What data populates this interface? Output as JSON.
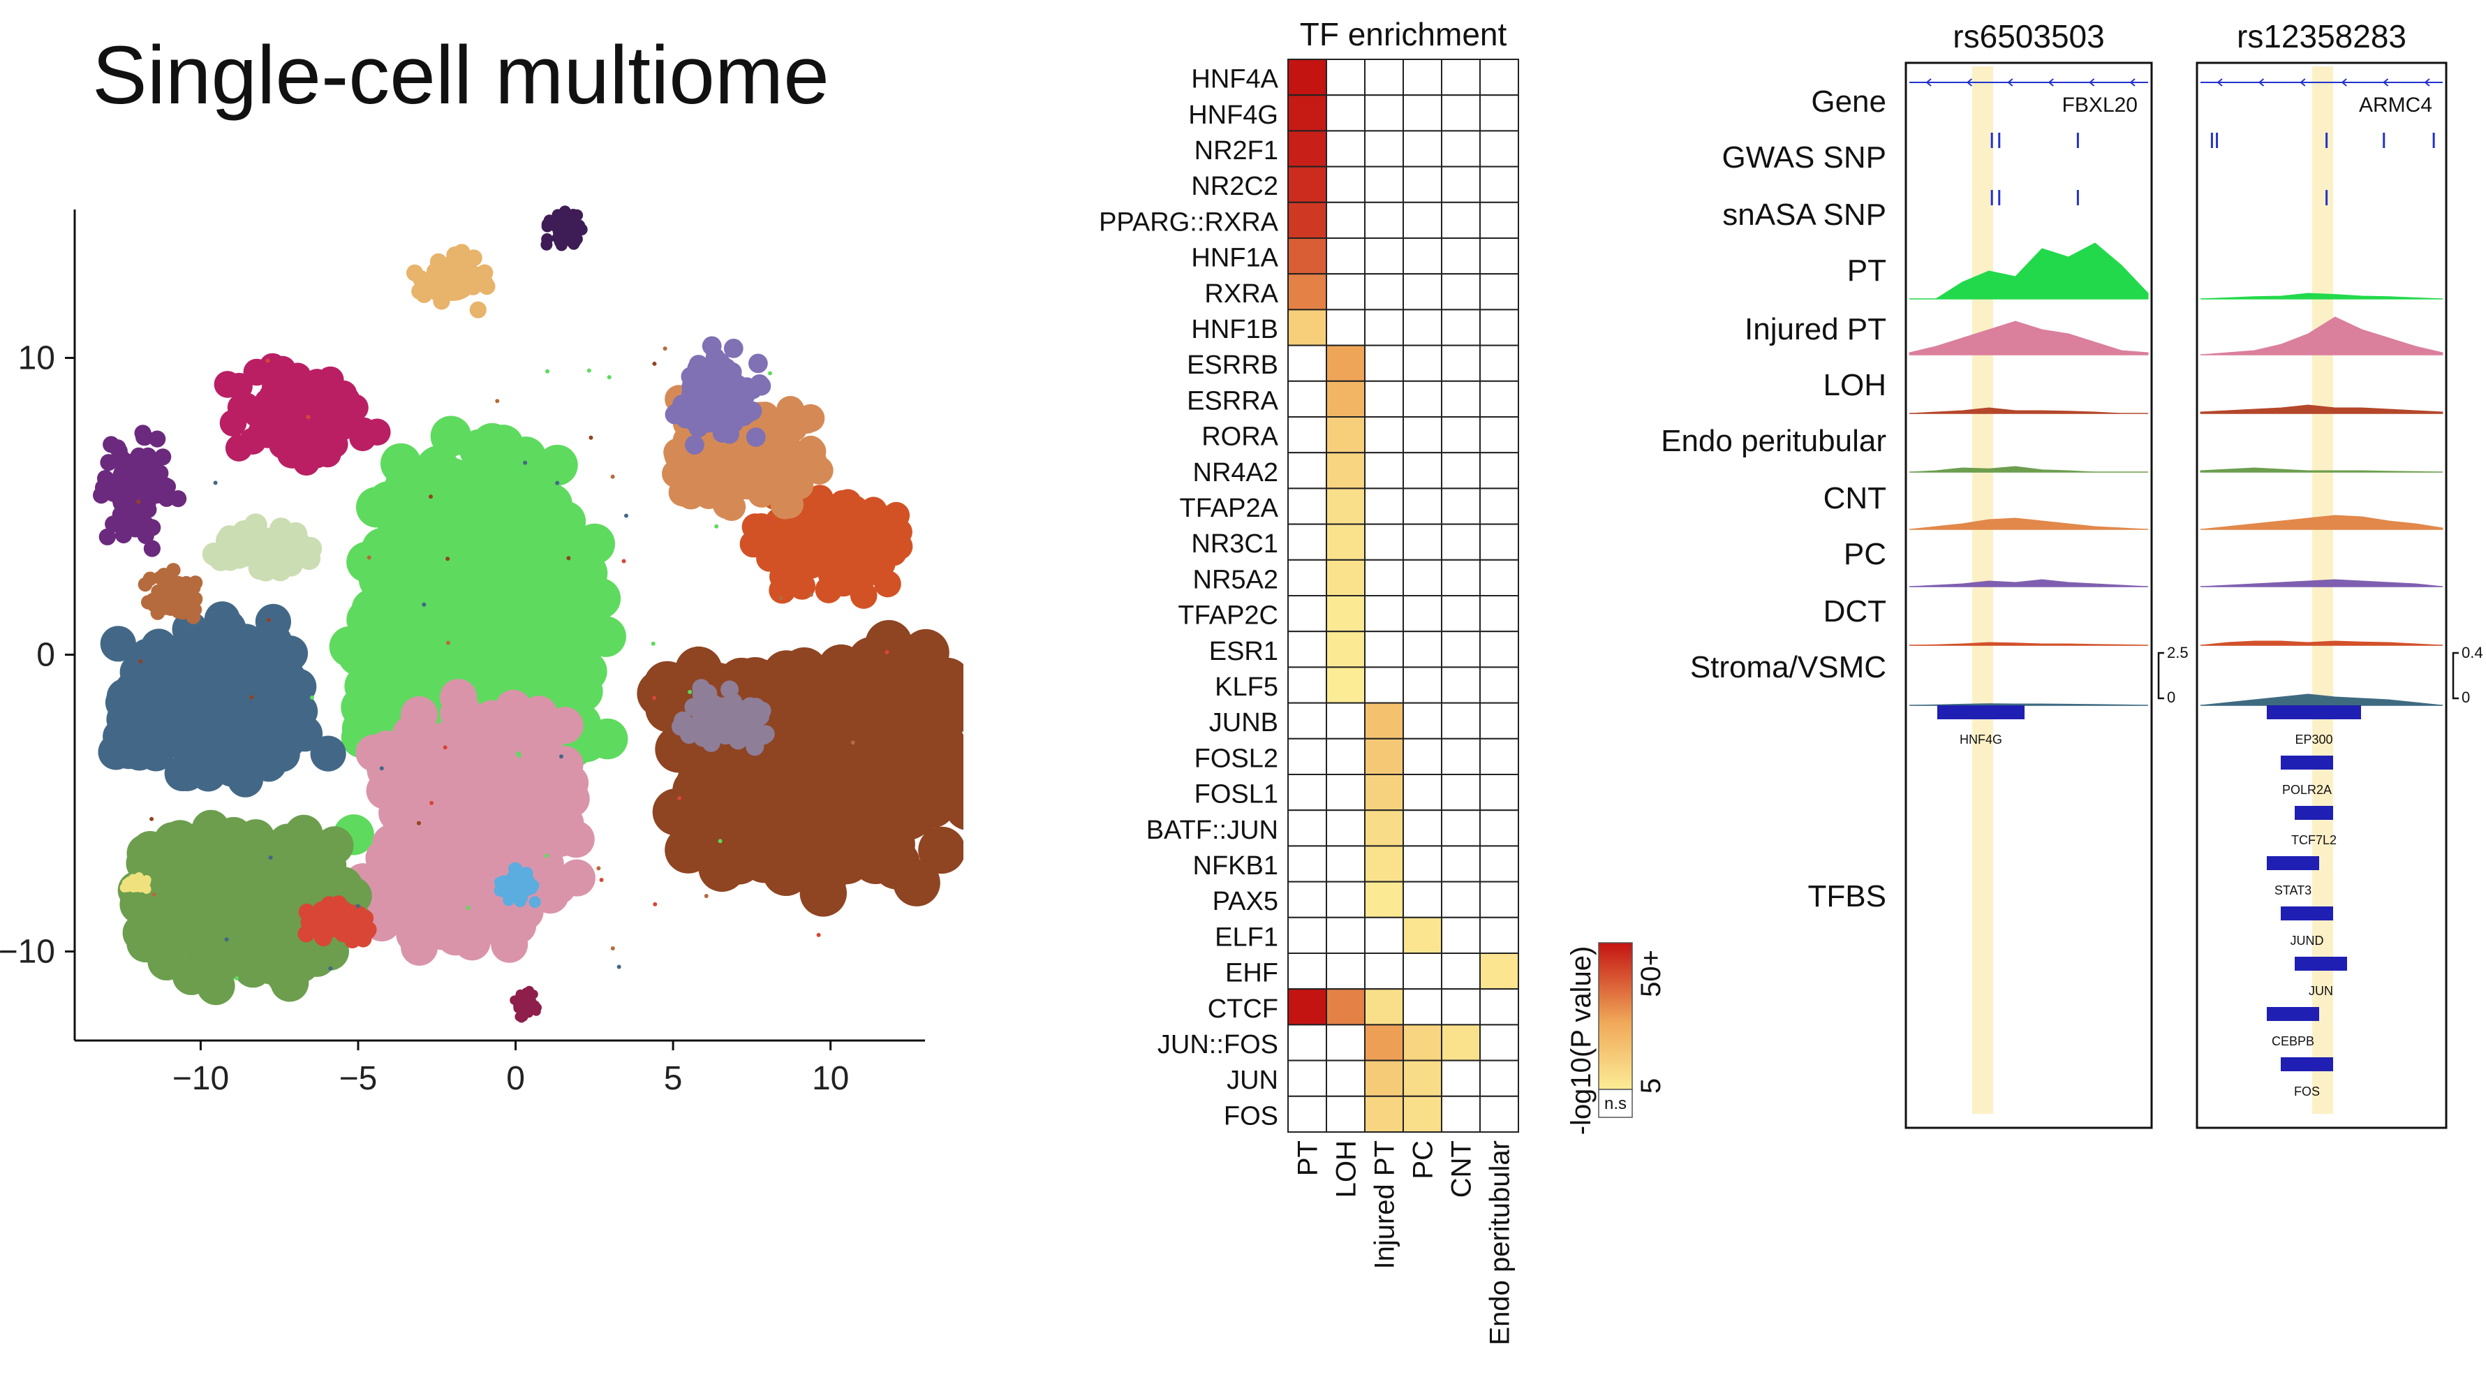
{
  "title": "Single-cell multiome",
  "umap": {
    "x_ticks": [
      "−10",
      "−5",
      "0",
      "5",
      "10"
    ],
    "y_ticks": [
      "10",
      "0",
      "−10"
    ],
    "xlim": [
      -14,
      13
    ],
    "ylim": [
      -13,
      15
    ]
  },
  "chart_data": [
    {
      "type": "scatter",
      "x_ticks": [
        -10,
        -5,
        0,
        5,
        10
      ],
      "y_ticks": [
        10,
        0,
        -10
      ],
      "xlim": [
        -14,
        13
      ],
      "ylim": [
        -13,
        15
      ],
      "clusters": [
        {
          "color": "#5EDA5E",
          "cx": -1.3,
          "cy": 0.5,
          "rx": 2.8,
          "ry": 4.6
        },
        {
          "color": "#DA94AA",
          "cx": -1.3,
          "cy": -5.7,
          "rx": 2.5,
          "ry": 3.0
        },
        {
          "color": "#5BADE0",
          "cx": 0.0,
          "cy": -7.8,
          "rx": 0.5,
          "ry": 0.5
        },
        {
          "color": "#8F4422",
          "cx": 9.6,
          "cy": -3.6,
          "rx": 3.3,
          "ry": 2.9
        },
        {
          "color": "#8E7E98",
          "cx": 6.6,
          "cy": -2.2,
          "rx": 1.0,
          "ry": 0.9
        },
        {
          "color": "#D25225",
          "cx": 10.0,
          "cy": 3.8,
          "rx": 1.7,
          "ry": 1.4
        },
        {
          "color": "#D58A55",
          "cx": 7.3,
          "cy": 6.6,
          "rx": 1.8,
          "ry": 1.3
        },
        {
          "color": "#7F71B4",
          "cx": 6.4,
          "cy": 8.7,
          "rx": 1.1,
          "ry": 1.2
        },
        {
          "color": "#436887",
          "cx": -9.6,
          "cy": -1.4,
          "rx": 2.4,
          "ry": 2.0
        },
        {
          "color": "#6C9E4E",
          "cx": -8.8,
          "cy": -8.3,
          "rx": 2.6,
          "ry": 1.9
        },
        {
          "color": "#D94635",
          "cx": -5.5,
          "cy": -9.0,
          "rx": 0.9,
          "ry": 0.5
        },
        {
          "color": "#BA1F64",
          "cx": -6.7,
          "cy": 8.0,
          "rx": 1.7,
          "ry": 1.2
        },
        {
          "color": "#6B2A7D",
          "cx": -12.1,
          "cy": 5.6,
          "rx": 0.9,
          "ry": 1.4
        },
        {
          "color": "#CBDDB2",
          "cx": -8.0,
          "cy": 3.6,
          "rx": 1.4,
          "ry": 0.6
        },
        {
          "color": "#B56B3D",
          "cx": -10.8,
          "cy": 2.0,
          "rx": 0.7,
          "ry": 0.6
        },
        {
          "color": "#E8B36A",
          "cx": -2.0,
          "cy": 12.6,
          "rx": 0.9,
          "ry": 0.8
        },
        {
          "color": "#3E1C55",
          "cx": 1.6,
          "cy": 14.3,
          "rx": 0.5,
          "ry": 0.5
        },
        {
          "color": "#8E1E4B",
          "cx": 0.3,
          "cy": -11.8,
          "rx": 0.3,
          "ry": 0.4
        },
        {
          "color": "#EFE27E",
          "cx": -12.0,
          "cy": -7.7,
          "rx": 0.3,
          "ry": 0.2
        }
      ]
    },
    {
      "type": "heatmap",
      "title": "TF enrichment",
      "rows": [
        "HNF4A",
        "HNF4G",
        "NR2F1",
        "NR2C2",
        "PPARG::RXRA",
        "HNF1A",
        "RXRA",
        "HNF1B",
        "ESRRB",
        "ESRRA",
        "RORA",
        "NR4A2",
        "TFAP2A",
        "NR3C1",
        "NR5A2",
        "TFAP2C",
        "ESR1",
        "KLF5",
        "JUNB",
        "FOSL2",
        "FOSL1",
        "BATF::JUN",
        "NFKB1",
        "PAX5",
        "ELF1",
        "EHF",
        "CTCF",
        "JUN::FOS",
        "JUN",
        "FOS"
      ],
      "columns": [
        "PT",
        "LOH",
        "Injured PT",
        "PC",
        "CNT",
        "Endo peritubular"
      ],
      "values": [
        [
          50,
          0,
          0,
          0,
          0,
          0
        ],
        [
          49,
          0,
          0,
          0,
          0,
          0
        ],
        [
          48,
          0,
          0,
          0,
          0,
          0
        ],
        [
          46,
          0,
          0,
          0,
          0,
          0
        ],
        [
          44,
          0,
          0,
          0,
          0,
          0
        ],
        [
          38,
          0,
          0,
          0,
          0,
          0
        ],
        [
          32,
          0,
          0,
          0,
          0,
          0
        ],
        [
          14,
          0,
          0,
          0,
          0,
          0
        ],
        [
          0,
          26,
          0,
          0,
          0,
          0
        ],
        [
          0,
          22,
          0,
          0,
          0,
          0
        ],
        [
          0,
          14,
          0,
          0,
          0,
          0
        ],
        [
          0,
          12,
          0,
          0,
          0,
          0
        ],
        [
          0,
          9,
          0,
          0,
          0,
          0
        ],
        [
          0,
          8,
          0,
          0,
          0,
          0
        ],
        [
          0,
          8,
          0,
          0,
          0,
          0
        ],
        [
          0,
          6,
          0,
          0,
          0,
          0
        ],
        [
          0,
          6,
          0,
          0,
          0,
          0
        ],
        [
          0,
          5,
          0,
          0,
          0,
          0
        ],
        [
          0,
          0,
          18,
          0,
          0,
          0
        ],
        [
          0,
          0,
          16,
          0,
          0,
          0
        ],
        [
          0,
          0,
          13,
          0,
          0,
          0
        ],
        [
          0,
          0,
          10,
          0,
          0,
          0
        ],
        [
          0,
          0,
          8,
          0,
          0,
          0
        ],
        [
          0,
          0,
          6,
          0,
          0,
          0
        ],
        [
          0,
          0,
          0,
          7,
          0,
          0
        ],
        [
          0,
          0,
          0,
          0,
          0,
          7
        ],
        [
          50,
          32,
          9,
          0,
          0,
          0
        ],
        [
          0,
          0,
          27,
          12,
          8,
          0
        ],
        [
          0,
          0,
          15,
          10,
          0,
          0
        ],
        [
          0,
          0,
          12,
          9,
          0,
          0
        ]
      ],
      "colorbar": {
        "label": "-log10(P value)",
        "max_label": "50+",
        "mid_label": "5",
        "ns_label": "n.s"
      }
    },
    {
      "type": "area",
      "loci": [
        {
          "snp": "rs6503503",
          "gene": "FBXL20",
          "tfbs": [
            "HNF4G"
          ]
        },
        {
          "snp": "rs12358283",
          "gene": "ARMC4",
          "tfbs": [
            "EP300",
            "POLR2A",
            "TCF7L2",
            "STAT3",
            "JUND",
            "JUN",
            "CEBPB",
            "FOS"
          ]
        }
      ],
      "track_labels": [
        "Gene",
        "GWAS SNP",
        "snASA SNP",
        "PT",
        "Injured PT",
        "LOH",
        "Endo peritubular",
        "CNT",
        "PC",
        "DCT",
        "Stroma/VSMC",
        "TFBS"
      ],
      "scale_left": [
        "2.5",
        "0"
      ],
      "scale_right": [
        "0.4",
        "0"
      ]
    }
  ]
}
